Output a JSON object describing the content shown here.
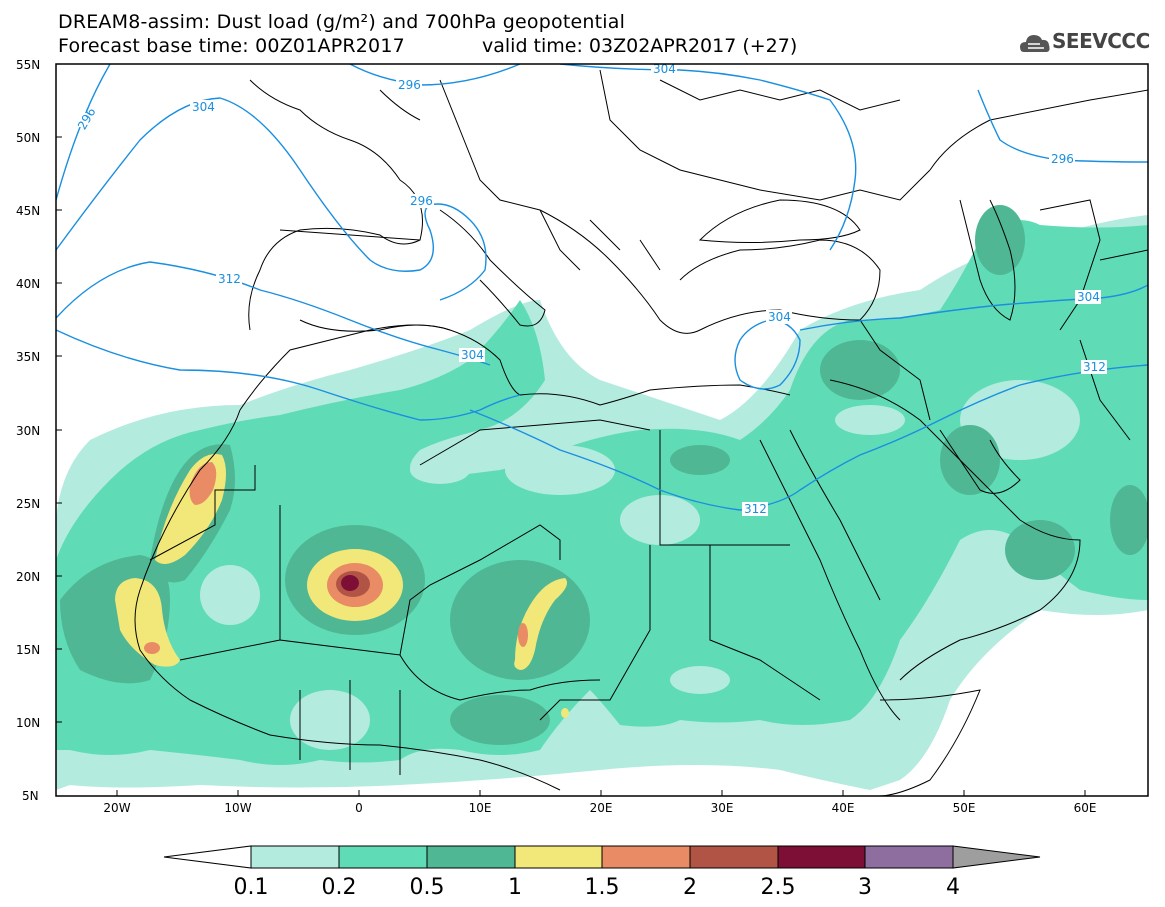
{
  "header": {
    "title_line1": "DREAM8-assim: Dust load (g/m²) and 700hPa geopotential",
    "title_line2_left": "Forecast base time: 00Z01APR2017",
    "title_line2_right": "valid time: 03Z02APR2017 (+27)"
  },
  "logo": {
    "text": "SEEVCCC",
    "icon": "cloud-logo-icon"
  },
  "axes": {
    "lat_labels": [
      "55N",
      "50N",
      "45N",
      "40N",
      "35N",
      "30N",
      "25N",
      "20N",
      "15N",
      "10N",
      "5N"
    ],
    "lon_labels": [
      "20W",
      "10W",
      "0",
      "10E",
      "20E",
      "30E",
      "40E",
      "50E",
      "60E"
    ]
  },
  "contour_labels": [
    {
      "text": "296"
    },
    {
      "text": "304"
    },
    {
      "text": "296"
    },
    {
      "text": "304"
    },
    {
      "text": "296"
    },
    {
      "text": "312"
    },
    {
      "text": "304"
    },
    {
      "text": "304"
    },
    {
      "text": "312"
    },
    {
      "text": "312"
    },
    {
      "text": "296"
    },
    {
      "text": "304"
    }
  ],
  "colorbar": {
    "labels": [
      "0.1",
      "0.2",
      "0.5",
      "1",
      "1.5",
      "2",
      "2.5",
      "3",
      "4"
    ],
    "colors": [
      "#b4ebdf",
      "#5fdcb6",
      "#4fb794",
      "#f2e87a",
      "#e98b64",
      "#b15445",
      "#7d0f36",
      "#8e6d9f",
      "#9e9e9e"
    ]
  },
  "colors": {
    "contour": "#1a8fe0",
    "border": "#000000",
    "background": "#ffffff"
  }
}
